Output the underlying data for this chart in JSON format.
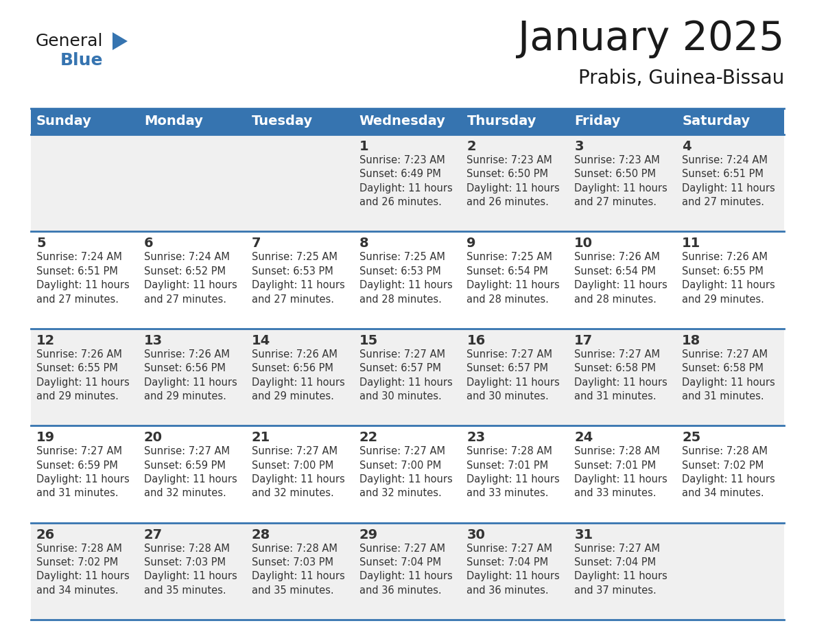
{
  "title": "January 2025",
  "subtitle": "Prabis, Guinea-Bissau",
  "header_bg": "#3674B0",
  "header_text": "#FFFFFF",
  "row_bg_odd": "#F0F0F0",
  "row_bg_even": "#FFFFFF",
  "cell_border": "#3674B0",
  "day_number_color": "#333333",
  "info_text_color": "#333333",
  "days_of_week": [
    "Sunday",
    "Monday",
    "Tuesday",
    "Wednesday",
    "Thursday",
    "Friday",
    "Saturday"
  ],
  "calendar": [
    [
      {
        "day": "",
        "info": ""
      },
      {
        "day": "",
        "info": ""
      },
      {
        "day": "",
        "info": ""
      },
      {
        "day": "1",
        "info": "Sunrise: 7:23 AM\nSunset: 6:49 PM\nDaylight: 11 hours\nand 26 minutes."
      },
      {
        "day": "2",
        "info": "Sunrise: 7:23 AM\nSunset: 6:50 PM\nDaylight: 11 hours\nand 26 minutes."
      },
      {
        "day": "3",
        "info": "Sunrise: 7:23 AM\nSunset: 6:50 PM\nDaylight: 11 hours\nand 27 minutes."
      },
      {
        "day": "4",
        "info": "Sunrise: 7:24 AM\nSunset: 6:51 PM\nDaylight: 11 hours\nand 27 minutes."
      }
    ],
    [
      {
        "day": "5",
        "info": "Sunrise: 7:24 AM\nSunset: 6:51 PM\nDaylight: 11 hours\nand 27 minutes."
      },
      {
        "day": "6",
        "info": "Sunrise: 7:24 AM\nSunset: 6:52 PM\nDaylight: 11 hours\nand 27 minutes."
      },
      {
        "day": "7",
        "info": "Sunrise: 7:25 AM\nSunset: 6:53 PM\nDaylight: 11 hours\nand 27 minutes."
      },
      {
        "day": "8",
        "info": "Sunrise: 7:25 AM\nSunset: 6:53 PM\nDaylight: 11 hours\nand 28 minutes."
      },
      {
        "day": "9",
        "info": "Sunrise: 7:25 AM\nSunset: 6:54 PM\nDaylight: 11 hours\nand 28 minutes."
      },
      {
        "day": "10",
        "info": "Sunrise: 7:26 AM\nSunset: 6:54 PM\nDaylight: 11 hours\nand 28 minutes."
      },
      {
        "day": "11",
        "info": "Sunrise: 7:26 AM\nSunset: 6:55 PM\nDaylight: 11 hours\nand 29 minutes."
      }
    ],
    [
      {
        "day": "12",
        "info": "Sunrise: 7:26 AM\nSunset: 6:55 PM\nDaylight: 11 hours\nand 29 minutes."
      },
      {
        "day": "13",
        "info": "Sunrise: 7:26 AM\nSunset: 6:56 PM\nDaylight: 11 hours\nand 29 minutes."
      },
      {
        "day": "14",
        "info": "Sunrise: 7:26 AM\nSunset: 6:56 PM\nDaylight: 11 hours\nand 29 minutes."
      },
      {
        "day": "15",
        "info": "Sunrise: 7:27 AM\nSunset: 6:57 PM\nDaylight: 11 hours\nand 30 minutes."
      },
      {
        "day": "16",
        "info": "Sunrise: 7:27 AM\nSunset: 6:57 PM\nDaylight: 11 hours\nand 30 minutes."
      },
      {
        "day": "17",
        "info": "Sunrise: 7:27 AM\nSunset: 6:58 PM\nDaylight: 11 hours\nand 31 minutes."
      },
      {
        "day": "18",
        "info": "Sunrise: 7:27 AM\nSunset: 6:58 PM\nDaylight: 11 hours\nand 31 minutes."
      }
    ],
    [
      {
        "day": "19",
        "info": "Sunrise: 7:27 AM\nSunset: 6:59 PM\nDaylight: 11 hours\nand 31 minutes."
      },
      {
        "day": "20",
        "info": "Sunrise: 7:27 AM\nSunset: 6:59 PM\nDaylight: 11 hours\nand 32 minutes."
      },
      {
        "day": "21",
        "info": "Sunrise: 7:27 AM\nSunset: 7:00 PM\nDaylight: 11 hours\nand 32 minutes."
      },
      {
        "day": "22",
        "info": "Sunrise: 7:27 AM\nSunset: 7:00 PM\nDaylight: 11 hours\nand 32 minutes."
      },
      {
        "day": "23",
        "info": "Sunrise: 7:28 AM\nSunset: 7:01 PM\nDaylight: 11 hours\nand 33 minutes."
      },
      {
        "day": "24",
        "info": "Sunrise: 7:28 AM\nSunset: 7:01 PM\nDaylight: 11 hours\nand 33 minutes."
      },
      {
        "day": "25",
        "info": "Sunrise: 7:28 AM\nSunset: 7:02 PM\nDaylight: 11 hours\nand 34 minutes."
      }
    ],
    [
      {
        "day": "26",
        "info": "Sunrise: 7:28 AM\nSunset: 7:02 PM\nDaylight: 11 hours\nand 34 minutes."
      },
      {
        "day": "27",
        "info": "Sunrise: 7:28 AM\nSunset: 7:03 PM\nDaylight: 11 hours\nand 35 minutes."
      },
      {
        "day": "28",
        "info": "Sunrise: 7:28 AM\nSunset: 7:03 PM\nDaylight: 11 hours\nand 35 minutes."
      },
      {
        "day": "29",
        "info": "Sunrise: 7:27 AM\nSunset: 7:04 PM\nDaylight: 11 hours\nand 36 minutes."
      },
      {
        "day": "30",
        "info": "Sunrise: 7:27 AM\nSunset: 7:04 PM\nDaylight: 11 hours\nand 36 minutes."
      },
      {
        "day": "31",
        "info": "Sunrise: 7:27 AM\nSunset: 7:04 PM\nDaylight: 11 hours\nand 37 minutes."
      },
      {
        "day": "",
        "info": ""
      }
    ]
  ],
  "logo_general_color": "#1a1a1a",
  "logo_blue_color": "#3674B0",
  "title_fontsize": 42,
  "subtitle_fontsize": 20,
  "header_fontsize": 14,
  "day_num_fontsize": 14,
  "info_fontsize": 10.5
}
